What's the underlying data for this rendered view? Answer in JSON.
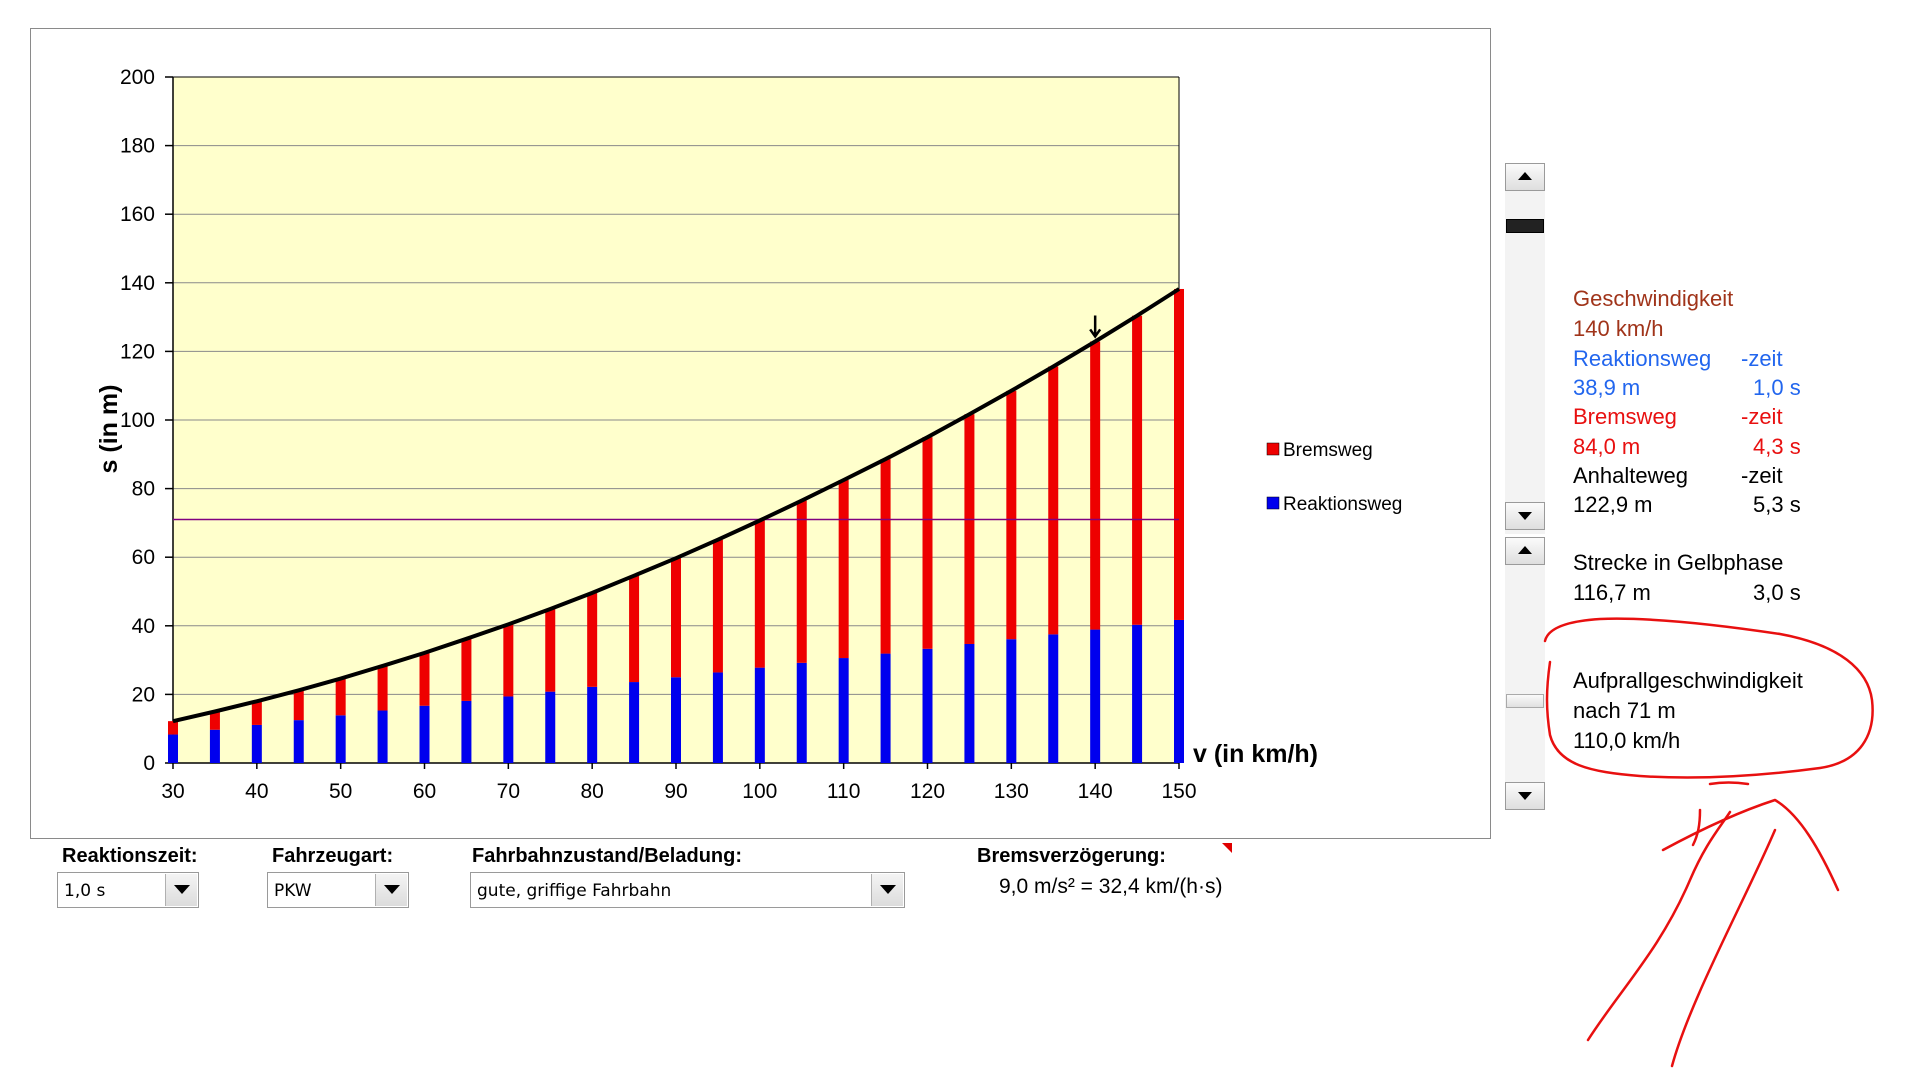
{
  "chart_data": {
    "type": "bar",
    "stacked": true,
    "categories": [
      "30",
      "35",
      "40",
      "45",
      "50",
      "55",
      "60",
      "65",
      "70",
      "75",
      "80",
      "85",
      "90",
      "95",
      "100",
      "105",
      "110",
      "115",
      "120",
      "125",
      "130",
      "135",
      "140",
      "145",
      "150"
    ],
    "series": [
      {
        "name": "Reaktionsweg",
        "color": "#0000ee",
        "values": [
          8.3,
          9.7,
          11.1,
          12.5,
          13.9,
          15.3,
          16.7,
          18.1,
          19.4,
          20.8,
          22.2,
          23.6,
          25.0,
          26.4,
          27.8,
          29.2,
          30.6,
          31.9,
          33.3,
          34.7,
          36.1,
          37.5,
          38.9,
          40.3,
          41.7
        ]
      },
      {
        "name": "Bremsweg",
        "color": "#ee0000",
        "values": [
          3.9,
          5.3,
          6.9,
          8.7,
          10.7,
          13.0,
          15.4,
          18.1,
          21.0,
          24.1,
          27.4,
          31.0,
          34.7,
          38.7,
          42.9,
          47.3,
          51.9,
          56.7,
          61.7,
          67.0,
          72.4,
          78.1,
          84.0,
          90.1,
          96.5
        ]
      }
    ],
    "xlabel": "v (in km/h)",
    "ylabel": "s (in m)",
    "ylim": [
      0,
      200
    ],
    "yticks": [
      "0",
      "20",
      "40",
      "60",
      "80",
      "100",
      "120",
      "140",
      "160",
      "180",
      "200"
    ],
    "xticks": [
      "30",
      "40",
      "50",
      "60",
      "70",
      "80",
      "90",
      "100",
      "110",
      "120",
      "130",
      "140",
      "150"
    ],
    "xlim": [
      30,
      150
    ],
    "threshold_line_y": 71,
    "threshold_line_color": "#800080",
    "marker_arrow_x": 140,
    "curve_color": "#000000",
    "plot_background": "#ffffcc",
    "grid": true,
    "legend_placement": "right",
    "legend": [
      "Bremsweg",
      "Reaktionsweg"
    ]
  },
  "controls": {
    "reaction_time_label": "Reaktionszeit:",
    "reaction_time_value": "1,0 s",
    "vehicle_label": "Fahrzeugart:",
    "vehicle_value": "PKW",
    "road_label": "Fahrbahnzustand/Beladung:",
    "road_value": "gute, griffige Fahrbahn",
    "decel_label": "Bremsverzögerung:",
    "decel_value": "9,0 m/s² = 32,4 km/(h·s)"
  },
  "info": {
    "speed_label": "Geschwindigkeit",
    "speed_value": "140 km/h",
    "reaction_label": "Reaktionsweg",
    "reaction_time_label": "-zeit",
    "reaction_distance": "38,9 m",
    "reaction_time": "1,0 s",
    "brake_label": "Bremsweg",
    "brake_time_label": "-zeit",
    "brake_distance": "84,0 m",
    "brake_time": "4,3 s",
    "stop_label": "Anhalteweg",
    "stop_time_label": "-zeit",
    "stop_distance": "122,9 m",
    "stop_time": "5,3 s",
    "yellow_label": "Strecke in Gelbphase",
    "yellow_distance": "116,7 m",
    "yellow_time": "3,0 s",
    "impact_label": "Aufprallgeschwindigkeit",
    "impact_after": "nach 71 m",
    "impact_speed": "110,0 km/h"
  },
  "colors": {
    "speed": "#a0341a",
    "reaction": "#2266ee",
    "brake": "#e81010",
    "annotation": "#e81010"
  }
}
